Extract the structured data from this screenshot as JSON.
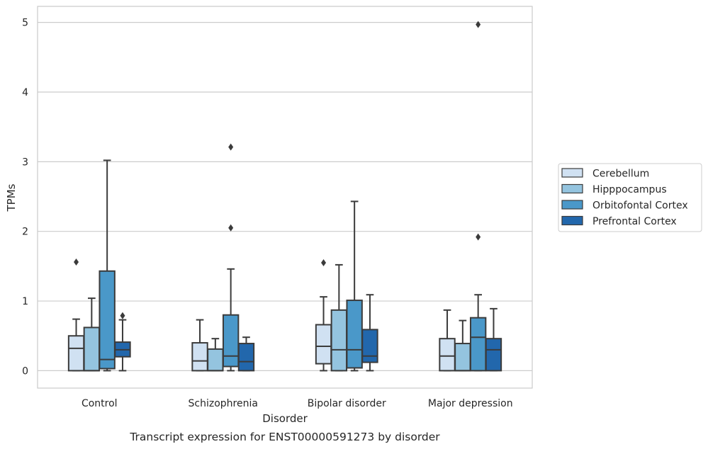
{
  "caption": "Transcript expression for ENST00000591273 by disorder",
  "chart_data": {
    "type": "box",
    "title": "",
    "xlabel": "Disorder",
    "ylabel": "TPMs",
    "ylim": [
      -0.25,
      5.23
    ],
    "yticks": [
      0,
      1,
      2,
      3,
      4,
      5
    ],
    "grid": "horizontal",
    "legend_position": "right",
    "categories": [
      "Control",
      "Schizophrenia",
      "Bipolar disorder",
      "Major depression"
    ],
    "series": [
      {
        "name": "Cerebellum",
        "color": "#d0e1f2",
        "boxes": [
          {
            "low": 0.0,
            "q1": 0.0,
            "median": 0.32,
            "q3": 0.5,
            "high": 0.74,
            "outliers": [
              1.56
            ]
          },
          {
            "low": 0.0,
            "q1": 0.0,
            "median": 0.14,
            "q3": 0.4,
            "high": 0.73,
            "outliers": []
          },
          {
            "low": 0.0,
            "q1": 0.1,
            "median": 0.35,
            "q3": 0.66,
            "high": 1.06,
            "outliers": [
              1.55
            ]
          },
          {
            "low": 0.0,
            "q1": 0.0,
            "median": 0.21,
            "q3": 0.46,
            "high": 0.87,
            "outliers": []
          }
        ]
      },
      {
        "name": "Hipppocampus",
        "color": "#94c4df",
        "boxes": [
          {
            "low": 0.0,
            "q1": 0.0,
            "median": 0.0,
            "q3": 0.62,
            "high": 1.04,
            "outliers": []
          },
          {
            "low": 0.0,
            "q1": 0.0,
            "median": 0.0,
            "q3": 0.31,
            "high": 0.46,
            "outliers": []
          },
          {
            "low": 0.0,
            "q1": 0.0,
            "median": 0.3,
            "q3": 0.87,
            "high": 1.52,
            "outliers": []
          },
          {
            "low": 0.0,
            "q1": 0.0,
            "median": 0.0,
            "q3": 0.39,
            "high": 0.72,
            "outliers": []
          }
        ]
      },
      {
        "name": "Orbitofontal Cortex",
        "color": "#4a98c9",
        "boxes": [
          {
            "low": 0.0,
            "q1": 0.03,
            "median": 0.16,
            "q3": 1.43,
            "high": 3.02,
            "outliers": []
          },
          {
            "low": 0.0,
            "q1": 0.06,
            "median": 0.21,
            "q3": 0.8,
            "high": 1.46,
            "outliers": [
              2.05,
              3.21
            ]
          },
          {
            "low": 0.0,
            "q1": 0.04,
            "median": 0.3,
            "q3": 1.01,
            "high": 2.43,
            "outliers": []
          },
          {
            "low": 0.0,
            "q1": 0.0,
            "median": 0.48,
            "q3": 0.76,
            "high": 1.09,
            "outliers": [
              1.92,
              4.97
            ]
          }
        ]
      },
      {
        "name": "Prefrontal Cortex",
        "color": "#2267ac",
        "boxes": [
          {
            "low": 0.0,
            "q1": 0.2,
            "median": 0.3,
            "q3": 0.41,
            "high": 0.73,
            "outliers": [
              0.79
            ]
          },
          {
            "low": 0.0,
            "q1": 0.0,
            "median": 0.13,
            "q3": 0.39,
            "high": 0.48,
            "outliers": []
          },
          {
            "low": 0.0,
            "q1": 0.12,
            "median": 0.21,
            "q3": 0.59,
            "high": 1.09,
            "outliers": []
          },
          {
            "low": 0.0,
            "q1": 0.0,
            "median": 0.3,
            "q3": 0.46,
            "high": 0.89,
            "outliers": []
          }
        ]
      }
    ]
  }
}
